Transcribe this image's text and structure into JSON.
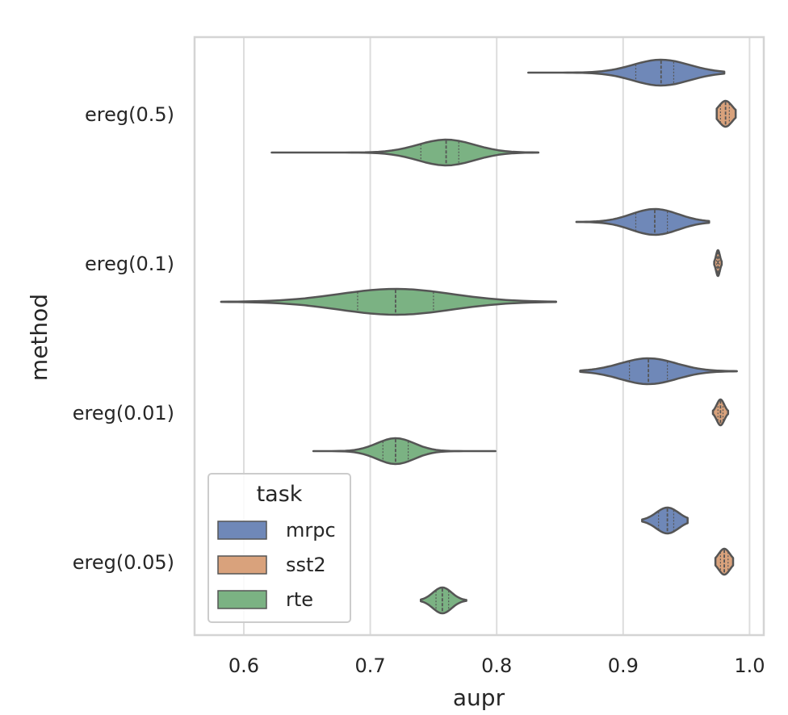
{
  "chart_data": {
    "type": "violin",
    "orientation": "horizontal",
    "xlabel": "aupr",
    "ylabel": "method",
    "xlim": [
      0.56,
      1.012
    ],
    "xticks": [
      "0.6",
      "0.7",
      "0.8",
      "0.9",
      "1.0"
    ],
    "xtick_values": [
      0.6,
      0.7,
      0.8,
      0.9,
      1.0
    ],
    "grid": "vertical",
    "categories": [
      "ereg(0.5)",
      "ereg(0.1)",
      "ereg(0.01)",
      "ereg(0.05)"
    ],
    "legend": {
      "title": "task",
      "placement": "lower-left",
      "entries": [
        "mrpc",
        "sst2",
        "rte"
      ]
    },
    "series": [
      {
        "name": "mrpc",
        "color": "#6f88b8",
        "violins": [
          {
            "category": "ereg(0.5)",
            "min": 0.825,
            "max": 0.98,
            "median": 0.93,
            "q1": 0.91,
            "q3": 0.94
          },
          {
            "category": "ereg(0.1)",
            "min": 0.863,
            "max": 0.968,
            "median": 0.925,
            "q1": 0.91,
            "q3": 0.935
          },
          {
            "category": "ereg(0.01)",
            "min": 0.866,
            "max": 0.99,
            "median": 0.92,
            "q1": 0.905,
            "q3": 0.935
          },
          {
            "category": "ereg(0.05)",
            "min": 0.915,
            "max": 0.951,
            "median": 0.935,
            "q1": 0.928,
            "q3": 0.94
          }
        ]
      },
      {
        "name": "sst2",
        "color": "#d9a27c",
        "violins": [
          {
            "category": "ereg(0.5)",
            "min": 0.974,
            "max": 0.989,
            "median": 0.981,
            "q1": 0.977,
            "q3": 0.984
          },
          {
            "category": "ereg(0.1)",
            "min": 0.972,
            "max": 0.978,
            "median": 0.975,
            "q1": 0.974,
            "q3": 0.976
          },
          {
            "category": "ereg(0.01)",
            "min": 0.971,
            "max": 0.983,
            "median": 0.977,
            "q1": 0.975,
            "q3": 0.979
          },
          {
            "category": "ereg(0.05)",
            "min": 0.973,
            "max": 0.987,
            "median": 0.98,
            "q1": 0.977,
            "q3": 0.983
          }
        ]
      },
      {
        "name": "rte",
        "color": "#7bb283",
        "violins": [
          {
            "category": "ereg(0.5)",
            "min": 0.622,
            "max": 0.833,
            "median": 0.76,
            "q1": 0.74,
            "q3": 0.77
          },
          {
            "category": "ereg(0.1)",
            "min": 0.582,
            "max": 0.847,
            "median": 0.72,
            "q1": 0.69,
            "q3": 0.75
          },
          {
            "category": "ereg(0.01)",
            "min": 0.655,
            "max": 0.799,
            "median": 0.72,
            "q1": 0.71,
            "q3": 0.73
          },
          {
            "category": "ereg(0.05)",
            "min": 0.74,
            "max": 0.776,
            "median": 0.757,
            "q1": 0.752,
            "q3": 0.762
          }
        ]
      }
    ]
  }
}
